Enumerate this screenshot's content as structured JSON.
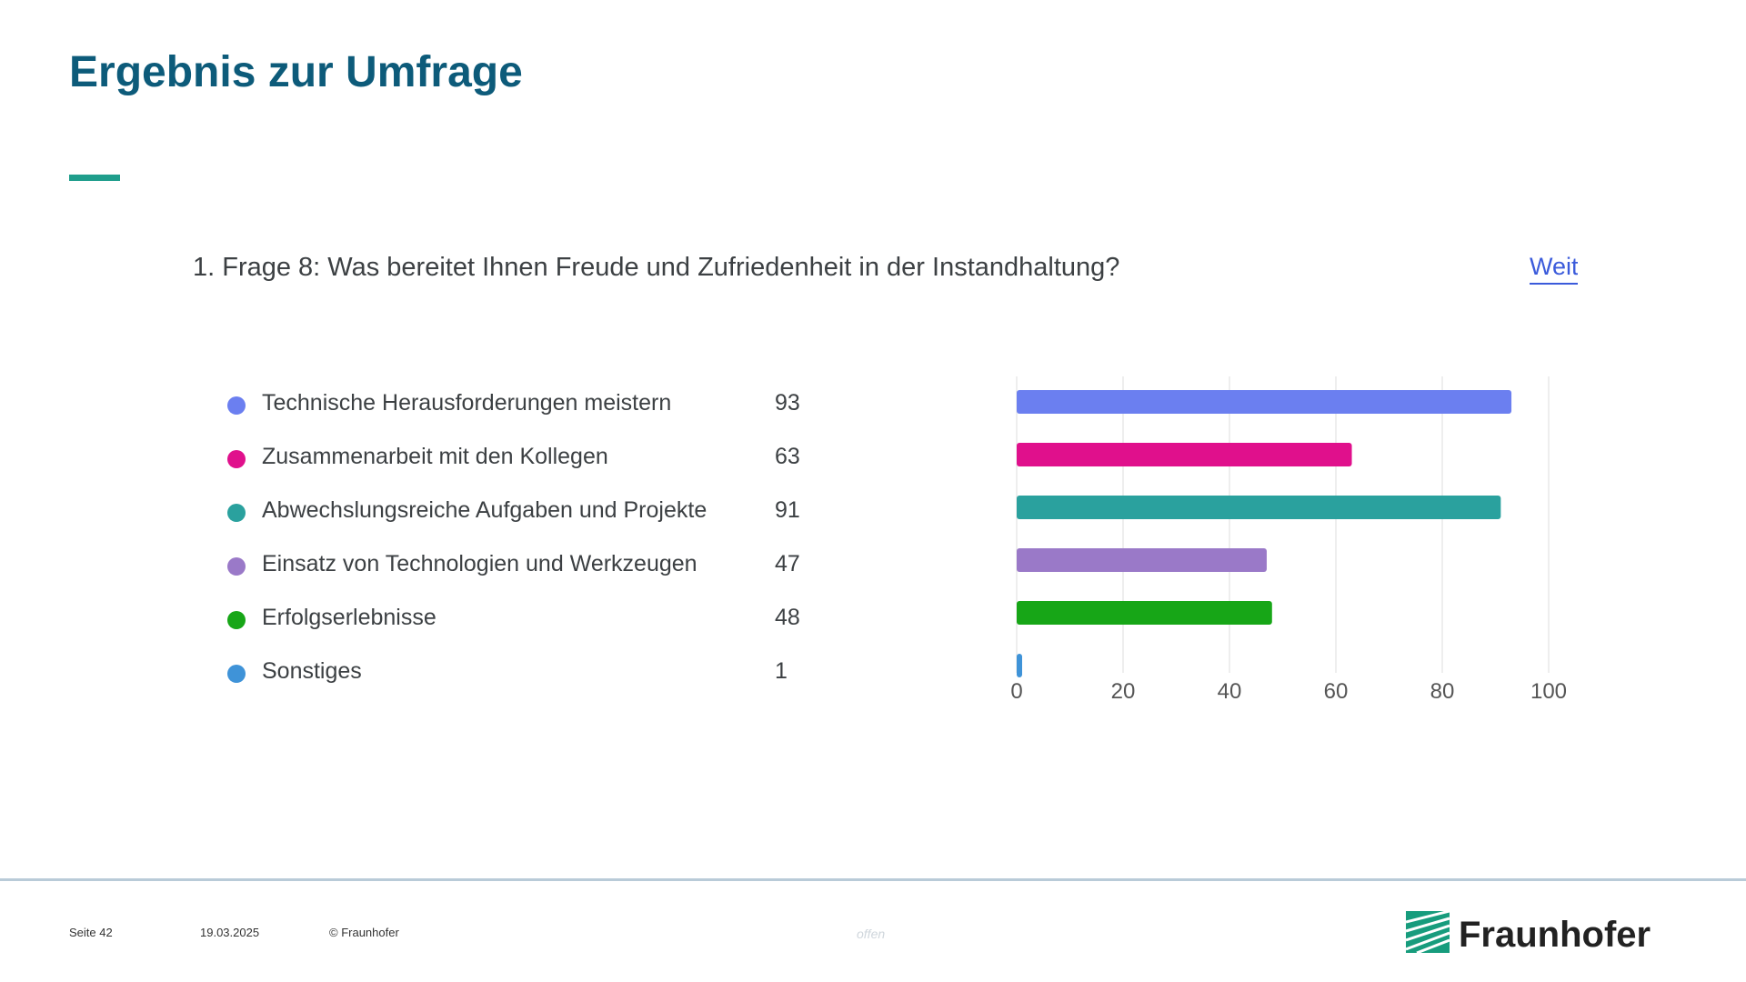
{
  "slide": {
    "title": "Ergebnis zur Umfrage",
    "question": "1. Frage 8: Was bereitet Ihnen Freude und Zufriedenheit in der Instandhaltung?",
    "more_link": "Weit"
  },
  "footer": {
    "page": "Seite 42",
    "date": "19.03.2025",
    "copyright": "© Fraunhofer",
    "classification": "offen",
    "logo_text": "Fraunhofer"
  },
  "colors": {
    "title": "#0d5b7a",
    "accent": "#1f9e8c",
    "logo_green": "#179c7d"
  },
  "chart_data": {
    "type": "bar",
    "orientation": "horizontal",
    "categories": [
      "Technische Herausforderungen meistern",
      "Zusammenarbeit mit den Kollegen",
      "Abwechslungsreiche Aufgaben und Projekte",
      "Einsatz von Technologien und Werkzeugen",
      "Erfolgserlebnisse",
      "Sonstiges"
    ],
    "values": [
      93,
      63,
      91,
      47,
      48,
      1
    ],
    "colors": [
      "#6b7ff0",
      "#e0108c",
      "#2aa19e",
      "#9a79c8",
      "#17a617",
      "#3f93d8"
    ],
    "xlim": [
      0,
      100
    ],
    "xticks": [
      "0",
      "20",
      "40",
      "60",
      "80",
      "100"
    ],
    "grid": true
  }
}
